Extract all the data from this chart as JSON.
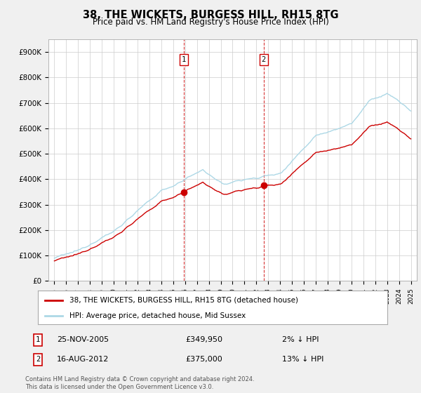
{
  "title": "38, THE WICKETS, BURGESS HILL, RH15 8TG",
  "subtitle": "Price paid vs. HM Land Registry's House Price Index (HPI)",
  "ylabel_ticks": [
    "£0",
    "£100K",
    "£200K",
    "£300K",
    "£400K",
    "£500K",
    "£600K",
    "£700K",
    "£800K",
    "£900K"
  ],
  "ytick_values": [
    0,
    100000,
    200000,
    300000,
    400000,
    500000,
    600000,
    700000,
    800000,
    900000
  ],
  "ylim": [
    0,
    950000
  ],
  "xlim_start": 1994.5,
  "xlim_end": 2025.5,
  "legend_line1": "38, THE WICKETS, BURGESS HILL, RH15 8TG (detached house)",
  "legend_line2": "HPI: Average price, detached house, Mid Sussex",
  "transaction1_date": "25-NOV-2005",
  "transaction1_price": "£349,950",
  "transaction1_pct": "2% ↓ HPI",
  "transaction1_x": 2005.9,
  "transaction1_y": 349950,
  "transaction2_date": "16-AUG-2012",
  "transaction2_price": "£375,000",
  "transaction2_pct": "13% ↓ HPI",
  "transaction2_x": 2012.62,
  "transaction2_y": 375000,
  "hpi_color": "#add8e6",
  "price_color": "#cc0000",
  "marker_color": "#cc0000",
  "dashed_color": "#cc0000",
  "background_color": "#f0f0f0",
  "plot_background": "#ffffff",
  "footer": "Contains HM Land Registry data © Crown copyright and database right 2024.\nThis data is licensed under the Open Government Licence v3.0."
}
